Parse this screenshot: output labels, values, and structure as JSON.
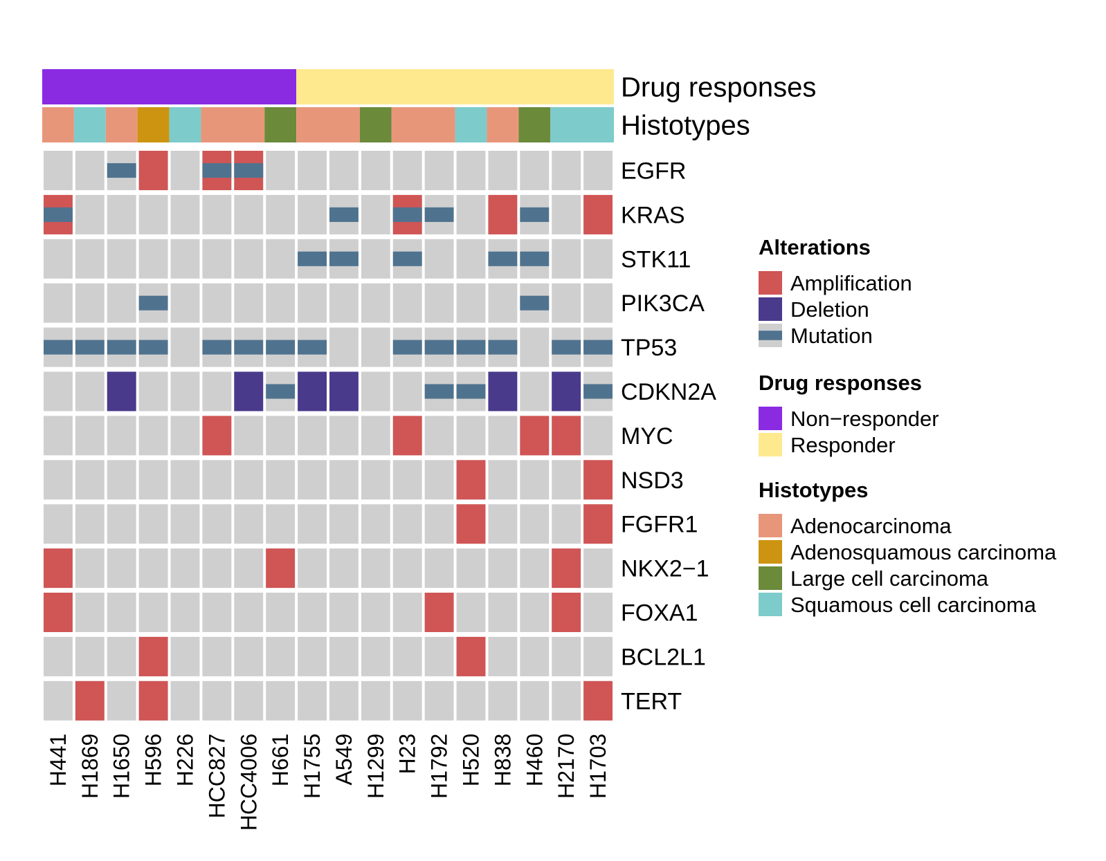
{
  "chart_data": {
    "type": "heatmap",
    "subtype": "oncoprint",
    "samples": [
      "H441",
      "H1869",
      "H1650",
      "H596",
      "H226",
      "HCC827",
      "HCC4006",
      "H661",
      "H1755",
      "A549",
      "H1299",
      "H23",
      "H1792",
      "H520",
      "H838",
      "H460",
      "H2170",
      "H1703"
    ],
    "genes": [
      "EGFR",
      "KRAS",
      "STK11",
      "PIK3CA",
      "TP53",
      "CDKN2A",
      "MYC",
      "NSD3",
      "FGFR1",
      "NKX2−1",
      "FOXA1",
      "BCL2L1",
      "TERT"
    ],
    "annotation_tracks": [
      {
        "name": "Drug responses",
        "values": [
          "Non−responder",
          "Non−responder",
          "Non−responder",
          "Non−responder",
          "Non−responder",
          "Non−responder",
          "Non−responder",
          "Non−responder",
          "Responder",
          "Responder",
          "Responder",
          "Responder",
          "Responder",
          "Responder",
          "Responder",
          "Responder",
          "Responder",
          "Responder"
        ]
      },
      {
        "name": "Histotypes",
        "values": [
          "Adenocarcinoma",
          "Squamous cell carcinoma",
          "Adenocarcinoma",
          "Adenosquamous carcinoma",
          "Squamous cell carcinoma",
          "Adenocarcinoma",
          "Adenocarcinoma",
          "Large cell carcinoma",
          "Adenocarcinoma",
          "Adenocarcinoma",
          "Large cell carcinoma",
          "Adenocarcinoma",
          "Adenocarcinoma",
          "Squamous cell carcinoma",
          "Adenocarcinoma",
          "Large cell carcinoma",
          "Squamous cell carcinoma",
          "Squamous cell carcinoma"
        ]
      }
    ],
    "alterations": [
      {
        "gene": "EGFR",
        "sample": "H1650",
        "types": [
          "Mutation"
        ]
      },
      {
        "gene": "EGFR",
        "sample": "H596",
        "types": [
          "Amplification"
        ]
      },
      {
        "gene": "EGFR",
        "sample": "HCC827",
        "types": [
          "Amplification",
          "Mutation"
        ]
      },
      {
        "gene": "EGFR",
        "sample": "HCC4006",
        "types": [
          "Amplification",
          "Mutation"
        ]
      },
      {
        "gene": "KRAS",
        "sample": "H441",
        "types": [
          "Amplification",
          "Mutation"
        ]
      },
      {
        "gene": "KRAS",
        "sample": "A549",
        "types": [
          "Mutation"
        ]
      },
      {
        "gene": "KRAS",
        "sample": "H23",
        "types": [
          "Amplification",
          "Mutation"
        ]
      },
      {
        "gene": "KRAS",
        "sample": "H1792",
        "types": [
          "Mutation"
        ]
      },
      {
        "gene": "KRAS",
        "sample": "H838",
        "types": [
          "Amplification"
        ]
      },
      {
        "gene": "KRAS",
        "sample": "H460",
        "types": [
          "Mutation"
        ]
      },
      {
        "gene": "KRAS",
        "sample": "H1703",
        "types": [
          "Amplification"
        ]
      },
      {
        "gene": "STK11",
        "sample": "H1755",
        "types": [
          "Mutation"
        ]
      },
      {
        "gene": "STK11",
        "sample": "A549",
        "types": [
          "Mutation"
        ]
      },
      {
        "gene": "STK11",
        "sample": "H23",
        "types": [
          "Mutation"
        ]
      },
      {
        "gene": "STK11",
        "sample": "H838",
        "types": [
          "Mutation"
        ]
      },
      {
        "gene": "STK11",
        "sample": "H460",
        "types": [
          "Mutation"
        ]
      },
      {
        "gene": "PIK3CA",
        "sample": "H596",
        "types": [
          "Mutation"
        ]
      },
      {
        "gene": "PIK3CA",
        "sample": "H460",
        "types": [
          "Mutation"
        ]
      },
      {
        "gene": "TP53",
        "sample": "H441",
        "types": [
          "Mutation"
        ]
      },
      {
        "gene": "TP53",
        "sample": "H1869",
        "types": [
          "Mutation"
        ]
      },
      {
        "gene": "TP53",
        "sample": "H1650",
        "types": [
          "Mutation"
        ]
      },
      {
        "gene": "TP53",
        "sample": "H596",
        "types": [
          "Mutation"
        ]
      },
      {
        "gene": "TP53",
        "sample": "HCC827",
        "types": [
          "Mutation"
        ]
      },
      {
        "gene": "TP53",
        "sample": "HCC4006",
        "types": [
          "Mutation"
        ]
      },
      {
        "gene": "TP53",
        "sample": "H661",
        "types": [
          "Mutation"
        ]
      },
      {
        "gene": "TP53",
        "sample": "H1755",
        "types": [
          "Mutation"
        ]
      },
      {
        "gene": "TP53",
        "sample": "H23",
        "types": [
          "Mutation"
        ]
      },
      {
        "gene": "TP53",
        "sample": "H1792",
        "types": [
          "Mutation"
        ]
      },
      {
        "gene": "TP53",
        "sample": "H520",
        "types": [
          "Mutation"
        ]
      },
      {
        "gene": "TP53",
        "sample": "H838",
        "types": [
          "Mutation"
        ]
      },
      {
        "gene": "TP53",
        "sample": "H2170",
        "types": [
          "Mutation"
        ]
      },
      {
        "gene": "TP53",
        "sample": "H1703",
        "types": [
          "Mutation"
        ]
      },
      {
        "gene": "CDKN2A",
        "sample": "H1650",
        "types": [
          "Deletion"
        ]
      },
      {
        "gene": "CDKN2A",
        "sample": "HCC4006",
        "types": [
          "Deletion"
        ]
      },
      {
        "gene": "CDKN2A",
        "sample": "H661",
        "types": [
          "Mutation"
        ]
      },
      {
        "gene": "CDKN2A",
        "sample": "H1755",
        "types": [
          "Deletion"
        ]
      },
      {
        "gene": "CDKN2A",
        "sample": "A549",
        "types": [
          "Deletion"
        ]
      },
      {
        "gene": "CDKN2A",
        "sample": "H1792",
        "types": [
          "Mutation"
        ]
      },
      {
        "gene": "CDKN2A",
        "sample": "H520",
        "types": [
          "Mutation"
        ]
      },
      {
        "gene": "CDKN2A",
        "sample": "H838",
        "types": [
          "Deletion"
        ]
      },
      {
        "gene": "CDKN2A",
        "sample": "H2170",
        "types": [
          "Deletion"
        ]
      },
      {
        "gene": "CDKN2A",
        "sample": "H1703",
        "types": [
          "Mutation"
        ]
      },
      {
        "gene": "MYC",
        "sample": "HCC827",
        "types": [
          "Amplification"
        ]
      },
      {
        "gene": "MYC",
        "sample": "H23",
        "types": [
          "Amplification"
        ]
      },
      {
        "gene": "MYC",
        "sample": "H460",
        "types": [
          "Amplification"
        ]
      },
      {
        "gene": "MYC",
        "sample": "H2170",
        "types": [
          "Amplification"
        ]
      },
      {
        "gene": "NSD3",
        "sample": "H520",
        "types": [
          "Amplification"
        ]
      },
      {
        "gene": "NSD3",
        "sample": "H1703",
        "types": [
          "Amplification"
        ]
      },
      {
        "gene": "FGFR1",
        "sample": "H520",
        "types": [
          "Amplification"
        ]
      },
      {
        "gene": "FGFR1",
        "sample": "H1703",
        "types": [
          "Amplification"
        ]
      },
      {
        "gene": "NKX2−1",
        "sample": "H441",
        "types": [
          "Amplification"
        ]
      },
      {
        "gene": "NKX2−1",
        "sample": "H661",
        "types": [
          "Amplification"
        ]
      },
      {
        "gene": "NKX2−1",
        "sample": "H2170",
        "types": [
          "Amplification"
        ]
      },
      {
        "gene": "FOXA1",
        "sample": "H441",
        "types": [
          "Amplification"
        ]
      },
      {
        "gene": "FOXA1",
        "sample": "H1792",
        "types": [
          "Amplification"
        ]
      },
      {
        "gene": "FOXA1",
        "sample": "H2170",
        "types": [
          "Amplification"
        ]
      },
      {
        "gene": "BCL2L1",
        "sample": "H596",
        "types": [
          "Amplification"
        ]
      },
      {
        "gene": "BCL2L1",
        "sample": "H520",
        "types": [
          "Amplification"
        ]
      },
      {
        "gene": "TERT",
        "sample": "H1869",
        "types": [
          "Amplification"
        ]
      },
      {
        "gene": "TERT",
        "sample": "H596",
        "types": [
          "Amplification"
        ]
      },
      {
        "gene": "TERT",
        "sample": "H1703",
        "types": [
          "Amplification"
        ]
      }
    ],
    "legends": [
      {
        "title": "Alterations",
        "items": [
          {
            "label": "Amplification",
            "color": "#d05555"
          },
          {
            "label": "Deletion",
            "color": "#4a3a8c"
          },
          {
            "label": "Mutation",
            "color": "#4f738f"
          }
        ]
      },
      {
        "title": "Drug responses",
        "items": [
          {
            "label": "Non−responder",
            "color": "#8a2be2"
          },
          {
            "label": "Responder",
            "color": "#ffe98f"
          }
        ]
      },
      {
        "title": "Histotypes",
        "items": [
          {
            "label": "Adenocarcinoma",
            "color": "#e8967a"
          },
          {
            "label": "Adenosquamous carcinoma",
            "color": "#cc9410"
          },
          {
            "label": "Large cell carcinoma",
            "color": "#6b8a3a"
          },
          {
            "label": "Squamous cell carcinoma",
            "color": "#7ecbcb"
          }
        ]
      }
    ],
    "colors": {
      "background_cell": "#cfcfcf",
      "Amplification": "#d05555",
      "Deletion": "#4a3a8c",
      "Mutation": "#4f738f",
      "Non−responder": "#8a2be2",
      "Responder": "#ffe98f",
      "Adenocarcinoma": "#e8967a",
      "Adenosquamous carcinoma": "#cc9410",
      "Large cell carcinoma": "#6b8a3a",
      "Squamous cell carcinoma": "#7ecbcb"
    }
  }
}
